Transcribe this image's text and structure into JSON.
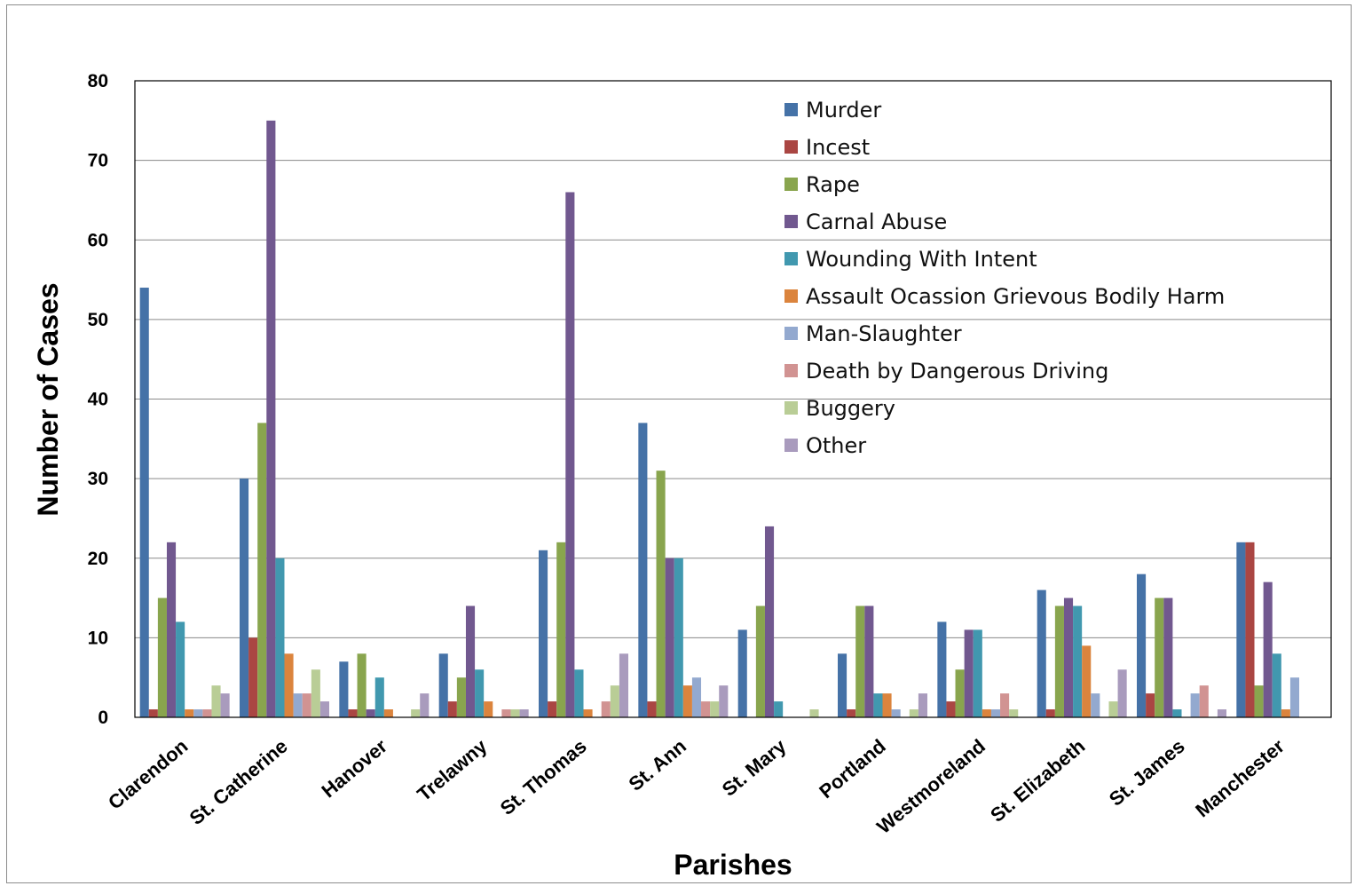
{
  "chart_data": {
    "type": "bar",
    "title": "",
    "xlabel": "Parishes",
    "ylabel": "Number of Cases",
    "ylim": [
      0,
      80
    ],
    "yticks": [
      0,
      10,
      20,
      30,
      40,
      50,
      60,
      70,
      80
    ],
    "grid": true,
    "legend_position": "top-right (inside plot)",
    "categories": [
      "Clarendon",
      "St. Catherine",
      "Hanover",
      "Trelawny",
      "St. Thomas",
      "St. Ann",
      "St. Mary",
      "Portland",
      "Westmoreland",
      "St. Elizabeth",
      "St. James",
      "Manchester"
    ],
    "series": [
      {
        "name": "Murder",
        "color": "#4572A7",
        "values": [
          54,
          30,
          7,
          8,
          21,
          37,
          11,
          8,
          12,
          16,
          18,
          22
        ]
      },
      {
        "name": "Incest",
        "color": "#AA4643",
        "values": [
          1,
          10,
          1,
          2,
          2,
          2,
          0,
          1,
          2,
          1,
          3,
          22
        ]
      },
      {
        "name": "Rape",
        "color": "#89A54E",
        "values": [
          15,
          37,
          8,
          5,
          22,
          31,
          14,
          14,
          6,
          14,
          15,
          4
        ]
      },
      {
        "name": "Carnal Abuse",
        "color": "#71588F",
        "values": [
          22,
          75,
          1,
          14,
          66,
          20,
          24,
          14,
          11,
          15,
          15,
          17
        ]
      },
      {
        "name": "Wounding With Intent",
        "color": "#4198AF",
        "values": [
          12,
          20,
          5,
          6,
          6,
          20,
          2,
          3,
          11,
          14,
          1,
          8
        ]
      },
      {
        "name": "Assault Ocassion Grievous Bodily Harm",
        "color": "#DB843D",
        "values": [
          1,
          8,
          1,
          2,
          1,
          4,
          0,
          3,
          1,
          9,
          0,
          1
        ]
      },
      {
        "name": "Man-Slaughter",
        "color": "#93A9CF",
        "values": [
          1,
          3,
          0,
          0,
          0,
          5,
          0,
          1,
          1,
          3,
          3,
          5
        ]
      },
      {
        "name": "Death by Dangerous Driving",
        "color": "#D19392",
        "values": [
          1,
          3,
          0,
          1,
          2,
          2,
          0,
          0,
          3,
          0,
          4,
          0
        ]
      },
      {
        "name": "Buggery",
        "color": "#B9CD96",
        "values": [
          4,
          6,
          1,
          1,
          4,
          2,
          1,
          1,
          1,
          2,
          0,
          0
        ]
      },
      {
        "name": "Other",
        "color": "#A99BBD",
        "values": [
          3,
          2,
          3,
          1,
          8,
          4,
          0,
          3,
          0,
          6,
          1,
          0
        ]
      }
    ]
  }
}
